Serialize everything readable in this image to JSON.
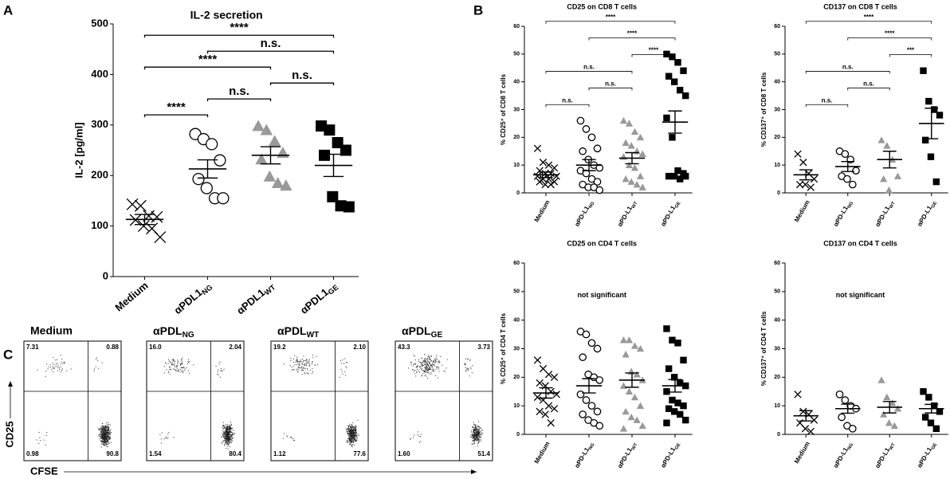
{
  "panel_labels": [
    "A",
    "B",
    "C"
  ],
  "chart_data": [
    {
      "type": "dot",
      "title": "IL-2 secretion",
      "ylabel": "IL-2 [pg/ml]",
      "categories": [
        "Medium",
        "αPDL1NG",
        "αPDL1WT",
        "αPDL1GE"
      ],
      "markers": [
        "x",
        "circle",
        "triangle",
        "square"
      ],
      "colors": [
        "#000000",
        "#000000",
        "#999999",
        "#000000"
      ],
      "values": [
        [
          143,
          140,
          120,
          118,
          112,
          100,
          95,
          78
        ],
        [
          282,
          272,
          262,
          230,
          193,
          175,
          155,
          155
        ],
        [
          298,
          290,
          268,
          245,
          232,
          198,
          185,
          180
        ],
        [
          298,
          290,
          265,
          250,
          240,
          158,
          140,
          138
        ]
      ],
      "means": [
        113,
        213,
        240,
        220
      ],
      "sem": [
        10,
        18,
        17,
        22
      ],
      "ylim": [
        0,
        500
      ],
      "yticks": [
        0,
        100,
        200,
        300,
        400,
        500
      ],
      "brackets": [
        {
          "from": 0,
          "to": 1,
          "label": "****"
        },
        {
          "from": 1,
          "to": 2,
          "label": "n.s."
        },
        {
          "from": 2,
          "to": 3,
          "label": "n.s."
        },
        {
          "from": 0,
          "to": 2,
          "label": "****"
        },
        {
          "from": 1,
          "to": 3,
          "label": "n.s."
        },
        {
          "from": 0,
          "to": 3,
          "label": "****"
        }
      ]
    },
    {
      "type": "dot",
      "title": "CD25 on CD8 T cells",
      "ylabel": "% CD25⁺ of CD8 T cells",
      "categories": [
        "Medium",
        "αPD-L1NG",
        "αPD-L1WT",
        "αPD-L1GE"
      ],
      "markers": [
        "x",
        "circle",
        "triangle",
        "square"
      ],
      "colors": [
        "#000000",
        "#000000",
        "#999999",
        "#000000"
      ],
      "values": [
        [
          16,
          11,
          10,
          9,
          8,
          7,
          7,
          6,
          6,
          5,
          5,
          4,
          4,
          3,
          3
        ],
        [
          26,
          23,
          20,
          16,
          15,
          12,
          10,
          9,
          8,
          7,
          5,
          4,
          3,
          2,
          2,
          1
        ],
        [
          26,
          25,
          22,
          20,
          18,
          17,
          15,
          14,
          13,
          10,
          9,
          6,
          5,
          4,
          3,
          2
        ],
        [
          50,
          49,
          47,
          44,
          42,
          40,
          37,
          35,
          27,
          20,
          8,
          7,
          6,
          6,
          5,
          6
        ]
      ],
      "means": [
        6.5,
        10,
        12.5,
        25.5
      ],
      "sem": [
        1,
        2,
        2,
        4
      ],
      "ylim": [
        0,
        60
      ],
      "yticks": [
        0,
        10,
        20,
        30,
        40,
        50,
        60
      ],
      "brackets": [
        {
          "from": 0,
          "to": 1,
          "label": "n.s."
        },
        {
          "from": 1,
          "to": 2,
          "label": "n.s."
        },
        {
          "from": 0,
          "to": 2,
          "label": "n.s."
        },
        {
          "from": 2,
          "to": 3,
          "label": "****"
        },
        {
          "from": 1,
          "to": 3,
          "label": "****"
        },
        {
          "from": 0,
          "to": 3,
          "label": "****"
        }
      ]
    },
    {
      "type": "dot",
      "title": "CD137 on CD8 T cells",
      "ylabel": "% CD137⁺ of CD8 T cells",
      "categories": [
        "Medium",
        "αPD-L1NG",
        "αPD-L1WT",
        "αPD-L1GE"
      ],
      "markers": [
        "x",
        "circle",
        "triangle",
        "square"
      ],
      "colors": [
        "#000000",
        "#000000",
        "#999999",
        "#000000"
      ],
      "values": [
        [
          14,
          11,
          7,
          5,
          3,
          3,
          2
        ],
        [
          15,
          14,
          12,
          8,
          6,
          5,
          3
        ],
        [
          19,
          17,
          12,
          6,
          5,
          1
        ],
        [
          44,
          33,
          30,
          28,
          19,
          13,
          4
        ]
      ],
      "means": [
        6.5,
        9.5,
        12,
        25
      ],
      "sem": [
        1.8,
        1.8,
        3,
        5.5
      ],
      "ylim": [
        0,
        60
      ],
      "yticks": [
        0,
        10,
        20,
        30,
        40,
        50,
        60
      ],
      "brackets": [
        {
          "from": 0,
          "to": 1,
          "label": "n.s."
        },
        {
          "from": 1,
          "to": 2,
          "label": "n.s."
        },
        {
          "from": 0,
          "to": 2,
          "label": "n.s."
        },
        {
          "from": 2,
          "to": 3,
          "label": "***"
        },
        {
          "from": 1,
          "to": 3,
          "label": "****"
        },
        {
          "from": 0,
          "to": 3,
          "label": "****"
        }
      ]
    },
    {
      "type": "dot",
      "title": "CD25 on CD4 T cells",
      "ylabel": "% CD25⁺ of CD4 T cells",
      "annotation": "not significant",
      "categories": [
        "Medium",
        "αPD-L1NG",
        "αPD-L1WT",
        "αPD-L1GE"
      ],
      "markers": [
        "x",
        "circle",
        "triangle",
        "square"
      ],
      "colors": [
        "#000000",
        "#000000",
        "#999999",
        "#000000"
      ],
      "values": [
        [
          26,
          23,
          21,
          20,
          18,
          17,
          15,
          14,
          13,
          12,
          10,
          9,
          8,
          7,
          4
        ],
        [
          36,
          35,
          32,
          30,
          27,
          21,
          20,
          19,
          14,
          12,
          10,
          8,
          7,
          5,
          4,
          3
        ],
        [
          33,
          33,
          31,
          30,
          28,
          22,
          21,
          19,
          17,
          15,
          13,
          10,
          8,
          6,
          5,
          3,
          2
        ],
        [
          37,
          33,
          32,
          26,
          23,
          20,
          18,
          17,
          15,
          12,
          11,
          10,
          9,
          8,
          7,
          5,
          4
        ]
      ],
      "means": [
        14.5,
        17,
        19,
        17
      ],
      "sem": [
        1.8,
        2.5,
        2.5,
        2.2
      ],
      "ylim": [
        0,
        60
      ],
      "yticks": [
        0,
        10,
        20,
        30,
        40,
        50,
        60
      ]
    },
    {
      "type": "dot",
      "title": "CD137 on CD4 T cells",
      "ylabel": "% CD137⁺ of CD4 T cells",
      "annotation": "not significant",
      "categories": [
        "Medium",
        "αPD-L1NG",
        "αPD-L1WT",
        "αPD-L1GE"
      ],
      "markers": [
        "x",
        "circle",
        "triangle",
        "square"
      ],
      "colors": [
        "#000000",
        "#000000",
        "#999999",
        "#000000"
      ],
      "values": [
        [
          14,
          8,
          7,
          5,
          4,
          2,
          1
        ],
        [
          14,
          12,
          10,
          9,
          6,
          3,
          2
        ],
        [
          19,
          13,
          11,
          9,
          7,
          4,
          3
        ],
        [
          15,
          13,
          10,
          8,
          6,
          4,
          2
        ]
      ],
      "means": [
        6.5,
        9,
        9.5,
        9
      ],
      "sem": [
        1.8,
        1.6,
        2,
        1.5
      ],
      "ylim": [
        0,
        60
      ],
      "yticks": [
        0,
        10,
        20,
        30,
        40,
        50,
        60
      ]
    },
    {
      "type": "flow",
      "title": "Medium",
      "xlabel": "CFSE",
      "ylabel": "CD25",
      "values": [
        7.31,
        0.88,
        0.98,
        90.8
      ],
      "value_labels": [
        "7.31",
        "0.88",
        "0.98",
        "90.8"
      ]
    },
    {
      "type": "flow",
      "title": "αPDLNG",
      "values": [
        16.0,
        2.04,
        1.54,
        80.4
      ],
      "value_labels": [
        "16.0",
        "2.04",
        "1.54",
        "80.4"
      ]
    },
    {
      "type": "flow",
      "title": "αPDLWT",
      "values": [
        19.2,
        2.1,
        1.12,
        77.6
      ],
      "value_labels": [
        "19.2",
        "2.10",
        "1.12",
        "77.6"
      ]
    },
    {
      "type": "flow",
      "title": "αPDLGE",
      "values": [
        43.3,
        3.73,
        1.6,
        51.4
      ],
      "value_labels": [
        "43.3",
        "3.73",
        "1.60",
        "51.4"
      ]
    }
  ]
}
